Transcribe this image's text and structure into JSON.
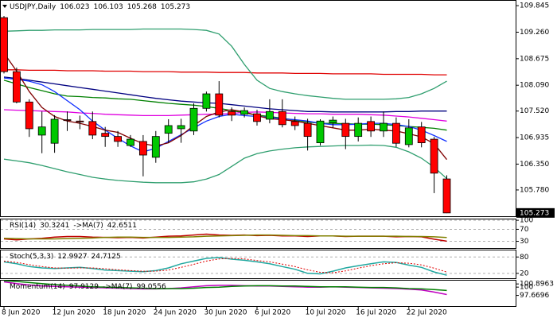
{
  "chart_data": [
    {
      "type": "candlestick",
      "title": "USDJPY,Daily",
      "categories": [
        "8 Jun 2020",
        null,
        null,
        null,
        "12 Jun 2020",
        null,
        null,
        null,
        "18 Jun 2020",
        null,
        null,
        null,
        "24 Jun 2020",
        null,
        null,
        null,
        "30 Jun 2020",
        null,
        null,
        null,
        "6 Jul 2020",
        null,
        null,
        null,
        "10 Jul 2020",
        null,
        null,
        null,
        "16 Jul 2020",
        null,
        null,
        null,
        "22 Jul 2020",
        null,
        null,
        null
      ],
      "open": [
        109.58,
        108.39,
        107.72,
        106.99,
        106.81,
        107.33,
        107.3,
        107.29,
        107.03,
        106.96,
        106.76,
        106.85,
        106.5,
        107.03,
        107.13,
        107.08,
        107.58,
        107.9,
        107.51,
        107.45,
        107.46,
        107.34,
        107.51,
        107.29,
        107.25,
        106.82,
        107.26,
        107.25,
        106.96,
        107.29,
        107.08,
        107.25,
        106.78,
        107.17,
        106.9,
        106.023
      ],
      "high": [
        109.62,
        108.48,
        107.78,
        107.51,
        107.43,
        107.51,
        107.42,
        107.51,
        107.17,
        107.08,
        106.99,
        106.99,
        107.08,
        107.34,
        107.35,
        107.69,
        107.95,
        108.18,
        107.6,
        107.6,
        107.55,
        107.78,
        107.78,
        107.4,
        107.35,
        107.34,
        107.4,
        107.35,
        107.38,
        107.4,
        107.51,
        107.38,
        107.34,
        107.28,
        106.95,
        106.103
      ],
      "low": [
        108.35,
        107.69,
        106.95,
        106.59,
        106.6,
        107.08,
        107.12,
        106.9,
        106.73,
        106.73,
        106.73,
        106.08,
        106.38,
        106.82,
        106.82,
        106.99,
        107.51,
        107.38,
        107.3,
        107.38,
        107.2,
        107.25,
        107.16,
        107.1,
        106.65,
        106.76,
        107.15,
        106.68,
        106.85,
        106.95,
        106.95,
        106.73,
        106.72,
        106.72,
        105.71,
        105.268
      ],
      "close": [
        108.39,
        107.72,
        107.13,
        107.17,
        107.34,
        107.31,
        107.28,
        106.99,
        106.96,
        106.85,
        106.9,
        106.55,
        106.96,
        107.2,
        107.2,
        107.58,
        107.9,
        107.43,
        107.43,
        107.53,
        107.29,
        107.51,
        107.22,
        107.2,
        106.96,
        107.3,
        107.32,
        106.96,
        107.25,
        107.08,
        107.25,
        106.81,
        107.15,
        106.82,
        106.15,
        105.273
      ],
      "up_color": "#00c800",
      "down_color": "#ff0000",
      "ylim": [
        105.2,
        109.97
      ],
      "yticks": [
        109.845,
        {
          "value": 109.26,
          "label": "109.260"
        },
        108.675,
        {
          "value": 108.09,
          "label": "108.090"
        },
        {
          "value": 107.52,
          "label": "107.520"
        },
        106.935,
        {
          "value": 106.35,
          "label": "106.350"
        },
        {
          "value": 105.78,
          "label": "105.780"
        }
      ],
      "overlays": [
        {
          "color": "#e00000",
          "values": [
            108.43,
            108.43,
            108.42,
            108.42,
            108.42,
            108.41,
            108.41,
            108.41,
            108.4,
            108.4,
            108.4,
            108.39,
            108.39,
            108.39,
            108.38,
            108.38,
            108.38,
            108.37,
            108.37,
            108.37,
            108.36,
            108.36,
            108.36,
            108.35,
            108.35,
            108.35,
            108.34,
            108.34,
            108.34,
            108.34,
            108.33,
            108.33,
            108.33,
            108.33,
            108.32,
            108.32
          ]
        },
        {
          "color": "#000080",
          "values": [
            108.27,
            108.24,
            108.2,
            108.16,
            108.12,
            108.08,
            108.04,
            108.0,
            107.96,
            107.92,
            107.88,
            107.84,
            107.8,
            107.77,
            107.74,
            107.72,
            107.7,
            107.69,
            107.66,
            107.63,
            107.6,
            107.57,
            107.55,
            107.53,
            107.51,
            107.51,
            107.5,
            107.5,
            107.5,
            107.5,
            107.5,
            107.51,
            107.51,
            107.52,
            107.52,
            107.52
          ]
        },
        {
          "color": "#008000",
          "values": [
            108.2,
            108.12,
            108.04,
            107.97,
            107.9,
            107.85,
            107.84,
            107.82,
            107.81,
            107.79,
            107.78,
            107.75,
            107.72,
            107.69,
            107.67,
            107.65,
            107.62,
            107.58,
            107.53,
            107.48,
            107.43,
            107.4,
            107.36,
            107.32,
            107.28,
            107.25,
            107.25,
            107.24,
            107.23,
            107.23,
            107.22,
            107.2,
            107.18,
            107.16,
            107.14,
            107.1
          ]
        },
        {
          "color": "#e000e0",
          "values": [
            107.55,
            107.54,
            107.53,
            107.52,
            107.51,
            107.5,
            107.48,
            107.47,
            107.45,
            107.44,
            107.43,
            107.42,
            107.42,
            107.42,
            107.43,
            107.44,
            107.45,
            107.45,
            107.47,
            107.49,
            107.5,
            107.49,
            107.48,
            107.47,
            107.46,
            107.46,
            107.45,
            107.45,
            107.45,
            107.44,
            107.43,
            107.41,
            107.39,
            107.36,
            107.33,
            107.3
          ]
        },
        {
          "color": "#1030ff",
          "values": [
            108.25,
            108.22,
            108.18,
            108.1,
            107.95,
            107.75,
            107.55,
            107.3,
            107.1,
            106.92,
            106.75,
            106.62,
            106.7,
            106.85,
            107.0,
            107.15,
            107.3,
            107.4,
            107.45,
            107.42,
            107.4,
            107.38,
            107.35,
            107.33,
            107.3,
            107.25,
            107.22,
            107.22,
            107.23,
            107.25,
            107.25,
            107.22,
            107.18,
            107.1,
            106.98,
            106.85
          ]
        },
        {
          "color": "#800000",
          "values": [
            108.8,
            108.4,
            107.95,
            107.6,
            107.4,
            107.3,
            107.25,
            107.18,
            107.1,
            107.05,
            106.92,
            106.8,
            106.75,
            106.82,
            106.98,
            107.2,
            107.4,
            107.5,
            107.55,
            107.5,
            107.42,
            107.35,
            107.33,
            107.3,
            107.25,
            107.2,
            107.15,
            107.1,
            107.1,
            107.12,
            107.1,
            107.08,
            107.02,
            106.95,
            106.8,
            106.45
          ]
        },
        {
          "color": "#2e9e6e",
          "values": [
            109.28,
            109.29,
            109.3,
            109.3,
            109.31,
            109.31,
            109.31,
            109.32,
            109.32,
            109.32,
            109.32,
            109.33,
            109.33,
            109.33,
            109.33,
            109.32,
            109.3,
            109.22,
            108.95,
            108.55,
            108.2,
            108.02,
            107.95,
            107.9,
            107.86,
            107.83,
            107.8,
            107.78,
            107.78,
            107.78,
            107.78,
            107.79,
            107.82,
            107.9,
            108.02,
            108.18
          ]
        },
        {
          "color": "#2e9e6e",
          "values": [
            106.46,
            106.42,
            106.38,
            106.32,
            106.25,
            106.18,
            106.12,
            106.06,
            106.02,
            105.99,
            105.97,
            105.95,
            105.94,
            105.94,
            105.94,
            105.96,
            106.02,
            106.12,
            106.3,
            106.48,
            106.58,
            106.64,
            106.68,
            106.71,
            106.73,
            106.74,
            106.75,
            106.76,
            106.76,
            106.77,
            106.76,
            106.72,
            106.62,
            106.48,
            106.28,
            106.03
          ]
        }
      ]
    },
    {
      "type": "line",
      "ylim": [
        7.6,
        105.6
      ],
      "yticks": [
        100,
        70,
        30
      ],
      "grid": true,
      "series": [
        {
          "name": "RSI(14)",
          "color": "#c00000",
          "values": [
            38,
            35,
            38,
            40,
            44,
            46,
            46,
            44,
            43,
            42,
            43,
            41,
            44,
            47,
            48,
            51,
            54,
            51,
            50,
            51,
            49,
            50,
            48,
            48,
            46,
            48,
            48,
            46,
            47,
            47,
            47,
            45,
            46,
            45,
            37,
            30.3241
          ]
        },
        {
          "name": "->MA(7)",
          "color": "#808000",
          "values": [
            40,
            39,
            38,
            38,
            38,
            39,
            40,
            41,
            43,
            44,
            44,
            43,
            43,
            43,
            44,
            45,
            47,
            48,
            49,
            50,
            51,
            51,
            50,
            49,
            49,
            48,
            48,
            47,
            47,
            47,
            47,
            47,
            46,
            46,
            45,
            42.6511
          ]
        }
      ]
    },
    {
      "type": "line",
      "ylim": [
        2,
        107
      ],
      "yticks": [
        80,
        20
      ],
      "grid": true,
      "series": [
        {
          "name": "Stoch(5,3,3)",
          "color": "#20a8a0",
          "values": [
            62,
            55,
            45,
            40,
            38,
            40,
            42,
            38,
            32,
            30,
            28,
            26,
            30,
            40,
            55,
            65,
            75,
            78,
            72,
            68,
            62,
            55,
            45,
            35,
            20,
            18,
            28,
            40,
            48,
            55,
            62,
            60,
            50,
            42,
            25,
            12.9927
          ]
        },
        {
          "color": "#e00000",
          "dashed": true,
          "values": [
            65,
            60,
            52,
            45,
            40,
            39,
            40,
            40,
            37,
            33,
            30,
            28,
            28,
            32,
            42,
            53,
            65,
            73,
            75,
            73,
            67,
            62,
            54,
            45,
            33,
            24,
            22,
            29,
            39,
            48,
            55,
            59,
            57,
            51,
            39,
            24.7125
          ]
        }
      ]
    },
    {
      "type": "line",
      "ylim": [
        94.67,
        102.05
      ],
      "yticks": [
        100.8963,
        100,
        97.6696
      ],
      "grid": false,
      "series": [
        {
          "name": "Momentum(14)",
          "color": "#c000c0",
          "values": [
            101.5,
            101.0,
            100.6,
            100.3,
            100.2,
            100.1,
            100.0,
            99.9,
            99.8,
            99.7,
            99.6,
            99.5,
            99.5,
            99.6,
            99.8,
            100.1,
            100.4,
            100.5,
            100.5,
            100.4,
            100.3,
            100.3,
            100.2,
            100.1,
            100.0,
            100.0,
            100.1,
            100.0,
            99.9,
            99.8,
            99.7,
            99.6,
            99.4,
            99.2,
            98.6,
            97.9129
          ]
        },
        {
          "name": "->MA(7)",
          "color": "#008000",
          "values": [
            101.8,
            101.6,
            101.3,
            101.0,
            100.7,
            100.5,
            100.3,
            100.1,
            100.0,
            99.9,
            99.8,
            99.7,
            99.6,
            99.6,
            99.6,
            99.7,
            99.9,
            100.0,
            100.2,
            100.3,
            100.4,
            100.4,
            100.3,
            100.3,
            100.2,
            100.1,
            100.1,
            100.1,
            100.0,
            99.9,
            99.9,
            99.8,
            99.6,
            99.5,
            99.3,
            99.0556
          ]
        }
      ]
    }
  ]
}
